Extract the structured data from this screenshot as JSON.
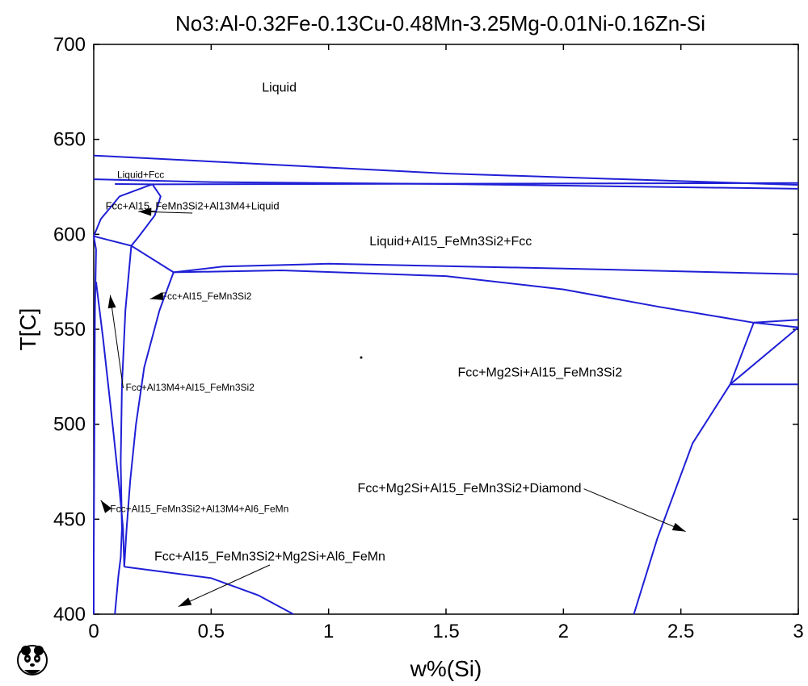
{
  "chart_data": {
    "type": "line",
    "title": "No3:Al-0.32Fe-0.13Cu-0.48Mn-3.25Mg-0.01Ni-0.16Zn-Si",
    "xlabel": "w%(Si)",
    "ylabel": "T[C]",
    "xlim": [
      0,
      3
    ],
    "ylim": [
      400,
      700
    ],
    "xticks": [
      0,
      0.5,
      1,
      1.5,
      2,
      2.5,
      3
    ],
    "xtick_labels": [
      "0",
      "0.5",
      "1",
      "1.5",
      "2",
      "2.5",
      "3"
    ],
    "yticks": [
      400,
      450,
      500,
      550,
      600,
      650,
      700
    ],
    "ytick_labels": [
      "400",
      "450",
      "500",
      "550",
      "600",
      "650",
      "700"
    ],
    "grid": false,
    "line_color": "#1f1fd6",
    "series": [
      {
        "points": [
          [
            0,
            641.5
          ],
          [
            1.5,
            632
          ],
          [
            3,
            626
          ]
        ]
      },
      {
        "points": [
          [
            0,
            629
          ],
          [
            0.5,
            627.5
          ],
          [
            1.5,
            626.5
          ],
          [
            3,
            624
          ]
        ]
      },
      {
        "points": [
          [
            0.09,
            626.5
          ],
          [
            0.25,
            626.3
          ],
          [
            3,
            627
          ]
        ]
      },
      {
        "points": [
          [
            0.25,
            626.3
          ],
          [
            0.23,
            625.5
          ],
          [
            0.11,
            620
          ],
          [
            0.03,
            608
          ],
          [
            0,
            599
          ]
        ]
      },
      {
        "points": [
          [
            0.25,
            626.3
          ],
          [
            0.285,
            620
          ],
          [
            0.26,
            610
          ],
          [
            0.19,
            598.5
          ],
          [
            0.16,
            594
          ]
        ]
      },
      {
        "points": [
          [
            0,
            599
          ],
          [
            0.16,
            594
          ],
          [
            0.34,
            580
          ]
        ]
      },
      {
        "points": [
          [
            0.34,
            580
          ],
          [
            0.55,
            583
          ],
          [
            1,
            584.5
          ],
          [
            2,
            582
          ],
          [
            3,
            579
          ]
        ]
      },
      {
        "points": [
          [
            0.34,
            580
          ],
          [
            0.8,
            581
          ],
          [
            1.5,
            578
          ],
          [
            2,
            571
          ],
          [
            2.4,
            562
          ],
          [
            2.81,
            553.5
          ]
        ]
      },
      {
        "points": [
          [
            2.81,
            553.5
          ],
          [
            3,
            555
          ]
        ]
      },
      {
        "points": [
          [
            2.81,
            553.5
          ],
          [
            3,
            551
          ]
        ]
      },
      {
        "points": [
          [
            2.81,
            553.5
          ],
          [
            2.71,
            521
          ]
        ]
      },
      {
        "points": [
          [
            3,
            551
          ],
          [
            2.71,
            521
          ]
        ]
      },
      {
        "points": [
          [
            2.71,
            521
          ],
          [
            3,
            521
          ]
        ]
      },
      {
        "points": [
          [
            2.71,
            521
          ],
          [
            2.55,
            490
          ],
          [
            2.4,
            440
          ],
          [
            2.3,
            400
          ]
        ]
      },
      {
        "points": [
          [
            0,
            599
          ],
          [
            0.01,
            592
          ],
          [
            0.005,
            560
          ],
          [
            0.003,
            500
          ],
          [
            0,
            430
          ],
          [
            0,
            400
          ]
        ]
      },
      {
        "points": [
          [
            0.16,
            594
          ],
          [
            0.135,
            560
          ],
          [
            0.12,
            520
          ],
          [
            0.115,
            480
          ],
          [
            0.12,
            445
          ],
          [
            0.115,
            430
          ],
          [
            0.105,
            420
          ],
          [
            0.09,
            400
          ]
        ]
      },
      {
        "points": [
          [
            0.34,
            580
          ],
          [
            0.28,
            560
          ],
          [
            0.215,
            530
          ],
          [
            0.18,
            500
          ],
          [
            0.155,
            470
          ],
          [
            0.14,
            445
          ],
          [
            0.13,
            425
          ]
        ]
      },
      {
        "points": [
          [
            0.01,
            575
          ],
          [
            0.04,
            545
          ],
          [
            0.08,
            500
          ],
          [
            0.11,
            465
          ],
          [
            0.125,
            445
          ],
          [
            0.13,
            425
          ]
        ]
      },
      {
        "points": [
          [
            0.13,
            425
          ],
          [
            0.5,
            419
          ],
          [
            0.7,
            410
          ],
          [
            0.85,
            400
          ]
        ]
      }
    ],
    "annotations": [
      {
        "text": "Liquid",
        "x": 0.79,
        "y": 677,
        "size": 16
      },
      {
        "text": "Liquid+Fcc",
        "x": 0.2,
        "y": 631,
        "size": 12
      },
      {
        "text": "Fcc+Al15_FeMn3Si2+Al13M4+Liquid",
        "x": 0.42,
        "y": 614.5,
        "size": 13,
        "arrow": [
          0.19,
          612
        ]
      },
      {
        "text": "Liquid+Al15_FeMn3Si2+Fcc",
        "x": 1.52,
        "y": 596,
        "size": 16
      },
      {
        "text": "Fcc+Al15_FeMn3Si2",
        "x": 0.48,
        "y": 567,
        "size": 12,
        "arrow": [
          0.24,
          566
        ]
      },
      {
        "text": "Fcc+Mg2Si+Al15_FeMn3Si2",
        "x": 1.9,
        "y": 527,
        "size": 16
      },
      {
        "text": "Fcc+Al13M4+Al15_FeMn3Si2",
        "x": 0.41,
        "y": 519,
        "size": 12,
        "arrow": [
          0.07,
          568
        ]
      },
      {
        "text": "Fcc+Mg2Si+Al15_FeMn3Si2+Diamond",
        "x": 1.6,
        "y": 466,
        "size": 16,
        "arrow": [
          2.52,
          443.5
        ]
      },
      {
        "text": "Fcc+Al15_FeMn3Si2+Al13M4+Al6_FeMn",
        "x": 0.45,
        "y": 455,
        "size": 12,
        "arrow": [
          0.03,
          460
        ]
      },
      {
        "text": "Fcc+Al15_FeMn3Si2+Mg2Si+Al6_FeMn",
        "x": 0.75,
        "y": 430,
        "size": 16,
        "arrow": [
          0.36,
          404
        ]
      }
    ]
  }
}
